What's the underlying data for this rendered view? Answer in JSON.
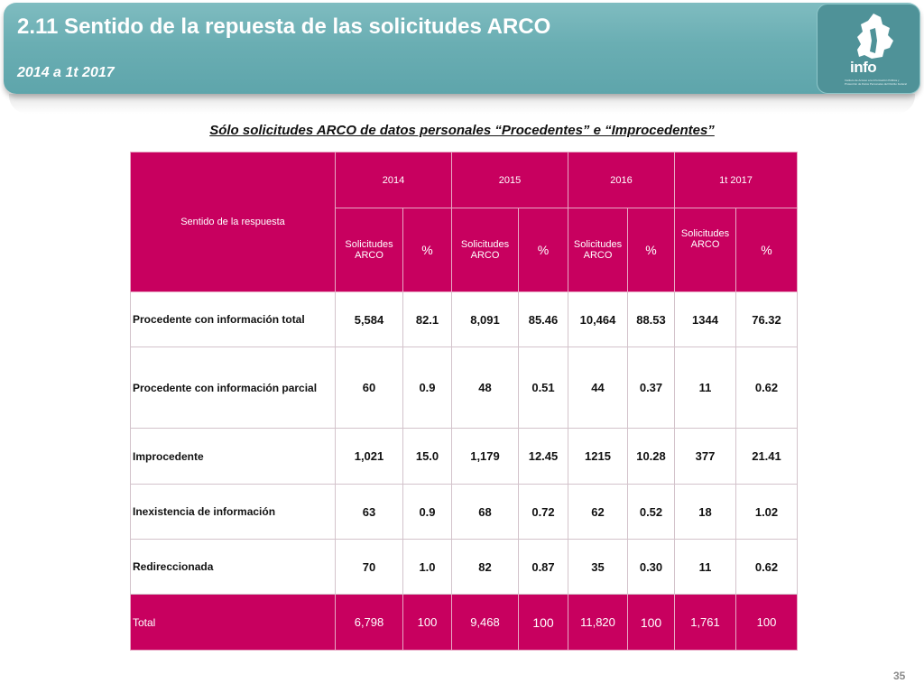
{
  "header": {
    "title": "2.11 Sentido de la repuesta de las solicitudes ARCO",
    "subtitle": "2014 a 1t 2017",
    "logo_text": "info",
    "logo_caption": "Instituto de Acceso a la Información Pública y Protección de Datos Personales del Distrito Federal"
  },
  "caption": "Sólo solicitudes ARCO de datos personales “Procedentes” e “Improcedentes”",
  "table": {
    "row_header": "Sentido de la respuesta",
    "years": [
      "2014",
      "2015",
      "2016",
      "1t 2017"
    ],
    "sub_solicitudes": "Solicitudes ARCO",
    "sub_pct": "%",
    "rows": [
      {
        "label": "Procedente con información total",
        "values": [
          "5,584",
          "82.1",
          "8,091",
          "85.46",
          "10,464",
          "88.53",
          "1344",
          "76.32"
        ]
      },
      {
        "label": "Procedente con información parcial",
        "values": [
          "60",
          "0.9",
          "48",
          "0.51",
          "44",
          "0.37",
          "11",
          "0.62"
        ]
      },
      {
        "label": "Improcedente",
        "values": [
          "1,021",
          "15.0",
          "1,179",
          "12.45",
          "1215",
          "10.28",
          "377",
          "21.41"
        ]
      },
      {
        "label": "Inexistencia de información",
        "values": [
          "63",
          "0.9",
          "68",
          "0.72",
          "62",
          "0.52",
          "18",
          "1.02"
        ]
      },
      {
        "label": "Redireccionada",
        "values": [
          "70",
          "1.0",
          "82",
          "0.87",
          "35",
          "0.30",
          "11",
          "0.62"
        ]
      }
    ],
    "total": {
      "label": "Total",
      "values": [
        "6,798",
        "100",
        "9,468",
        "100",
        "11,820",
        "100",
        "1,761",
        "100"
      ]
    }
  },
  "page_number": "35",
  "colors": {
    "header_teal": "#6aaeb3",
    "table_magenta": "#c8005f"
  }
}
